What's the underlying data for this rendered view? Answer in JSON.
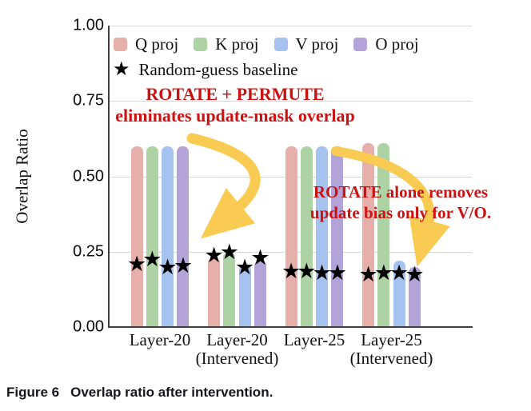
{
  "figure": {
    "caption_label": "Figure 6",
    "caption_text": "Overlap ratio after intervention."
  },
  "legend": {
    "baseline_label": "Random-guess baseline",
    "baseline_marker": "black-star"
  },
  "annotations": [
    {
      "name": "rotate-permute",
      "lines": [
        "ROTATE + PERMUTE",
        "eliminates update-mask overlap"
      ]
    },
    {
      "name": "rotate-alone",
      "lines": [
        "ROTATE alone removes",
        "update bias only for V/O."
      ]
    }
  ],
  "colors": {
    "q_proj": "#E7AFA9",
    "k_proj": "#ADD2A3",
    "v_proj": "#A6C3F0",
    "o_proj": "#B2A4D9",
    "arrow_yellow": "#F9CB52",
    "annotation_red": "#CC1111",
    "grid": "#D8D8D8",
    "axis": "#3D3D3D",
    "star": "#000000",
    "caption_text": "#15151E"
  },
  "chart_data": {
    "type": "bar",
    "title": "",
    "ylabel": "Overlap Ratio",
    "xlabel": "",
    "ylim": [
      0,
      1.0
    ],
    "yticks": [
      "0.00",
      "0.25",
      "0.50",
      "0.75",
      "1.00"
    ],
    "grid": true,
    "legend_position": "top-left-inside",
    "categories": [
      {
        "line1": "Layer-20",
        "line2": ""
      },
      {
        "line1": "Layer-20",
        "line2": "(Intervened)"
      },
      {
        "line1": "Layer-25",
        "line2": ""
      },
      {
        "line1": "Layer-25",
        "line2": "(Intervened)"
      }
    ],
    "series": [
      {
        "name": "Q proj",
        "color": "#E7AFA9",
        "values": [
          0.6,
          0.23,
          0.6,
          0.61
        ],
        "baseline_stars": [
          0.21,
          0.24,
          0.185,
          0.175
        ]
      },
      {
        "name": "K proj",
        "color": "#ADD2A3",
        "values": [
          0.6,
          0.25,
          0.6,
          0.61
        ],
        "baseline_stars": [
          0.225,
          0.25,
          0.185,
          0.18
        ]
      },
      {
        "name": "V proj",
        "color": "#A6C3F0",
        "values": [
          0.6,
          0.21,
          0.6,
          0.22
        ],
        "baseline_stars": [
          0.2,
          0.2,
          0.18,
          0.18
        ]
      },
      {
        "name": "O proj",
        "color": "#B2A4D9",
        "values": [
          0.6,
          0.22,
          0.6,
          0.2
        ],
        "baseline_stars": [
          0.205,
          0.23,
          0.18,
          0.175
        ]
      }
    ],
    "baseline_marker": "black-star"
  }
}
